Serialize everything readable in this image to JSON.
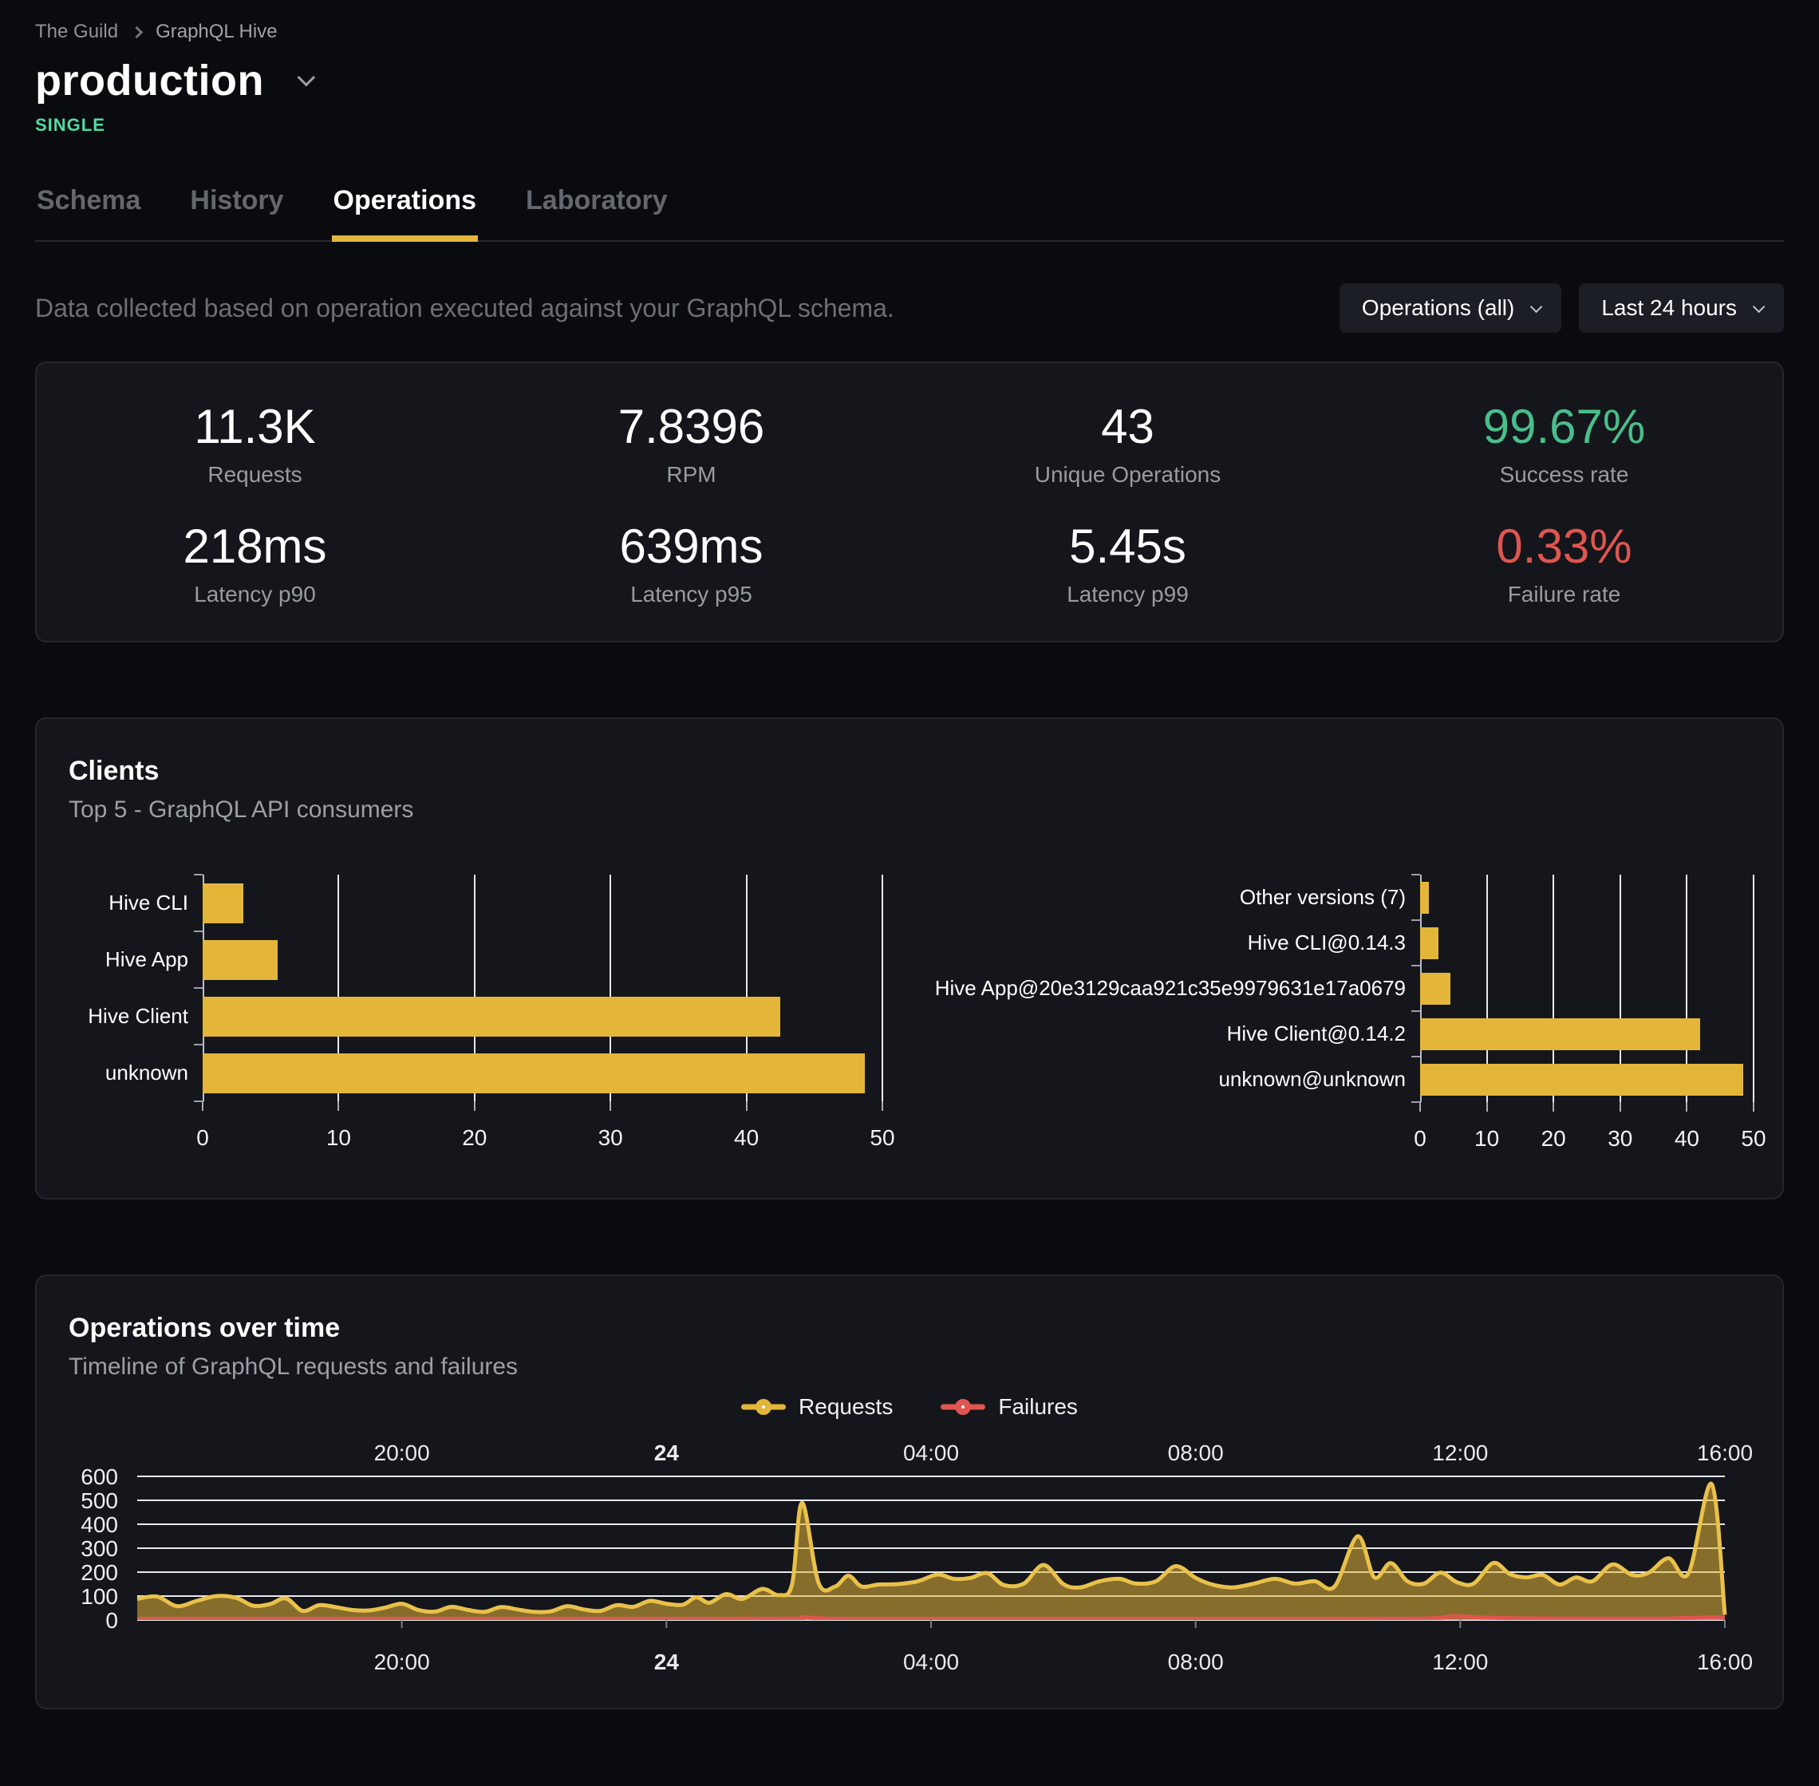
{
  "header": {
    "breadcrumb": [
      "The Guild",
      "GraphQL Hive"
    ],
    "target_name": "production",
    "badge": "SINGLE",
    "tabs": [
      {
        "label": "Schema",
        "active": false
      },
      {
        "label": "History",
        "active": false
      },
      {
        "label": "Operations",
        "active": true
      },
      {
        "label": "Laboratory",
        "active": false
      }
    ]
  },
  "toolbar": {
    "description": "Data collected based on operation executed against your GraphQL schema.",
    "operations_filter": "Operations (all)",
    "period_filter": "Last 24 hours"
  },
  "stats": {
    "cells": [
      {
        "value": "11.3K",
        "label": "Requests",
        "color": "#ffffff"
      },
      {
        "value": "7.8396",
        "label": "RPM",
        "color": "#ffffff"
      },
      {
        "value": "43",
        "label": "Unique Operations",
        "color": "#ffffff"
      },
      {
        "value": "99.67%",
        "label": "Success rate",
        "color": "#4abe8a"
      },
      {
        "value": "218ms",
        "label": "Latency p90",
        "color": "#ffffff"
      },
      {
        "value": "639ms",
        "label": "Latency p95",
        "color": "#ffffff"
      },
      {
        "value": "5.45s",
        "label": "Latency p99",
        "color": "#ffffff"
      },
      {
        "value": "0.33%",
        "label": "Failure rate",
        "color": "#df564f"
      }
    ]
  },
  "clients_card": {
    "title": "Clients",
    "subtitle": "Top 5 - GraphQL API consumers"
  },
  "operations_card": {
    "title": "Operations over time",
    "subtitle": "Timeline of GraphQL requests and failures",
    "legend": [
      {
        "label": "Requests",
        "color": "#e3b63a"
      },
      {
        "label": "Failures",
        "color": "#df564f"
      }
    ]
  },
  "colors": {
    "background": "#0a0b0e",
    "panel": "#14161b",
    "panel_border": "#24272d",
    "accent_gold": "#e3b63a",
    "badge_mint": "#52d9a5",
    "success_green": "#4abe8a",
    "failure_red": "#df564f"
  },
  "chart_data": [
    {
      "type": "bar",
      "orientation": "horizontal",
      "title": "Clients by name",
      "categories": [
        "Hive CLI",
        "Hive App",
        "Hive Client",
        "unknown"
      ],
      "values": [
        3,
        5.5,
        42.5,
        48.7
      ],
      "xlim": [
        0,
        50
      ],
      "xticks": [
        0,
        10,
        20,
        30,
        40,
        50
      ],
      "bar_color": "#e3b63a",
      "grid": true
    },
    {
      "type": "bar",
      "orientation": "horizontal",
      "title": "Clients by version",
      "categories": [
        "Other versions (7)",
        "Hive CLI@0.14.3",
        "Hive App@20e3129caa921c35e9979631e17a0679",
        "Hive Client@0.14.2",
        "unknown@unknown"
      ],
      "values": [
        1.3,
        2.8,
        4.6,
        42,
        48.5
      ],
      "xlim": [
        0,
        50
      ],
      "xticks": [
        0,
        10,
        20,
        30,
        40,
        50
      ],
      "bar_color": "#e3b63a",
      "grid": true
    },
    {
      "type": "area",
      "title": "Operations over time",
      "x_domain_hours": [
        16,
        40
      ],
      "x_ticks": [
        {
          "hour": 20,
          "label": "20:00",
          "bold": false
        },
        {
          "hour": 24,
          "label": "24",
          "bold": true
        },
        {
          "hour": 28,
          "label": "04:00",
          "bold": false
        },
        {
          "hour": 32,
          "label": "08:00",
          "bold": false
        },
        {
          "hour": 36,
          "label": "12:00",
          "bold": false
        },
        {
          "hour": 40,
          "label": "16:00",
          "bold": false
        }
      ],
      "ylim": [
        0,
        600
      ],
      "yticks": [
        0,
        100,
        200,
        300,
        400,
        500,
        600
      ],
      "grid": true,
      "legend_position": "top-center",
      "series": [
        {
          "name": "Requests",
          "color": "#e9c14a",
          "fill": "rgba(227,182,58,0.55)",
          "points": [
            [
              16.0,
              88
            ],
            [
              16.3,
              98
            ],
            [
              16.6,
              58
            ],
            [
              16.9,
              80
            ],
            [
              17.2,
              100
            ],
            [
              17.5,
              92
            ],
            [
              17.75,
              60
            ],
            [
              18.0,
              66
            ],
            [
              18.25,
              90
            ],
            [
              18.5,
              38
            ],
            [
              18.75,
              62
            ],
            [
              19.0,
              54
            ],
            [
              19.25,
              42
            ],
            [
              19.5,
              40
            ],
            [
              19.75,
              52
            ],
            [
              20.0,
              68
            ],
            [
              20.25,
              42
            ],
            [
              20.5,
              35
            ],
            [
              20.75,
              55
            ],
            [
              21.0,
              42
            ],
            [
              21.25,
              34
            ],
            [
              21.5,
              54
            ],
            [
              21.75,
              44
            ],
            [
              22.0,
              34
            ],
            [
              22.25,
              36
            ],
            [
              22.5,
              58
            ],
            [
              22.75,
              44
            ],
            [
              23.0,
              38
            ],
            [
              23.25,
              62
            ],
            [
              23.5,
              55
            ],
            [
              23.75,
              80
            ],
            [
              24.0,
              68
            ],
            [
              24.25,
              64
            ],
            [
              24.45,
              95
            ],
            [
              24.65,
              72
            ],
            [
              24.9,
              108
            ],
            [
              25.15,
              88
            ],
            [
              25.45,
              130
            ],
            [
              25.7,
              104
            ],
            [
              25.9,
              150
            ],
            [
              26.05,
              490
            ],
            [
              26.3,
              155
            ],
            [
              26.55,
              140
            ],
            [
              26.75,
              185
            ],
            [
              26.95,
              140
            ],
            [
              27.2,
              148
            ],
            [
              27.5,
              150
            ],
            [
              27.8,
              162
            ],
            [
              28.1,
              190
            ],
            [
              28.35,
              172
            ],
            [
              28.6,
              176
            ],
            [
              28.85,
              196
            ],
            [
              29.1,
              146
            ],
            [
              29.4,
              152
            ],
            [
              29.7,
              230
            ],
            [
              30.0,
              150
            ],
            [
              30.25,
              136
            ],
            [
              30.55,
              162
            ],
            [
              30.85,
              172
            ],
            [
              31.1,
              152
            ],
            [
              31.4,
              162
            ],
            [
              31.7,
              225
            ],
            [
              32.0,
              176
            ],
            [
              32.25,
              148
            ],
            [
              32.55,
              136
            ],
            [
              32.85,
              150
            ],
            [
              33.2,
              172
            ],
            [
              33.5,
              152
            ],
            [
              33.8,
              162
            ],
            [
              34.1,
              140
            ],
            [
              34.45,
              350
            ],
            [
              34.7,
              178
            ],
            [
              34.95,
              238
            ],
            [
              35.2,
              162
            ],
            [
              35.45,
              152
            ],
            [
              35.7,
              198
            ],
            [
              35.95,
              158
            ],
            [
              36.2,
              152
            ],
            [
              36.5,
              238
            ],
            [
              36.75,
              192
            ],
            [
              37.0,
              178
            ],
            [
              37.25,
              188
            ],
            [
              37.5,
              148
            ],
            [
              37.75,
              178
            ],
            [
              38.0,
              162
            ],
            [
              38.3,
              232
            ],
            [
              38.6,
              188
            ],
            [
              38.85,
              198
            ],
            [
              39.15,
              258
            ],
            [
              39.45,
              195
            ],
            [
              39.8,
              568
            ],
            [
              40.0,
              22
            ]
          ]
        },
        {
          "name": "Failures",
          "color": "#df564f",
          "fill": "rgba(223,86,79,0.35)",
          "points": [
            [
              16.0,
              5
            ],
            [
              18,
              5
            ],
            [
              20,
              5
            ],
            [
              22,
              5
            ],
            [
              24,
              5
            ],
            [
              25.9,
              6
            ],
            [
              26.05,
              12
            ],
            [
              26.35,
              7
            ],
            [
              27,
              5
            ],
            [
              29,
              5
            ],
            [
              31,
              5
            ],
            [
              33,
              5
            ],
            [
              35.4,
              6
            ],
            [
              35.9,
              16
            ],
            [
              36.4,
              10
            ],
            [
              37,
              7
            ],
            [
              38,
              6
            ],
            [
              39,
              6
            ],
            [
              39.8,
              11
            ],
            [
              40.0,
              8
            ]
          ]
        }
      ]
    }
  ]
}
